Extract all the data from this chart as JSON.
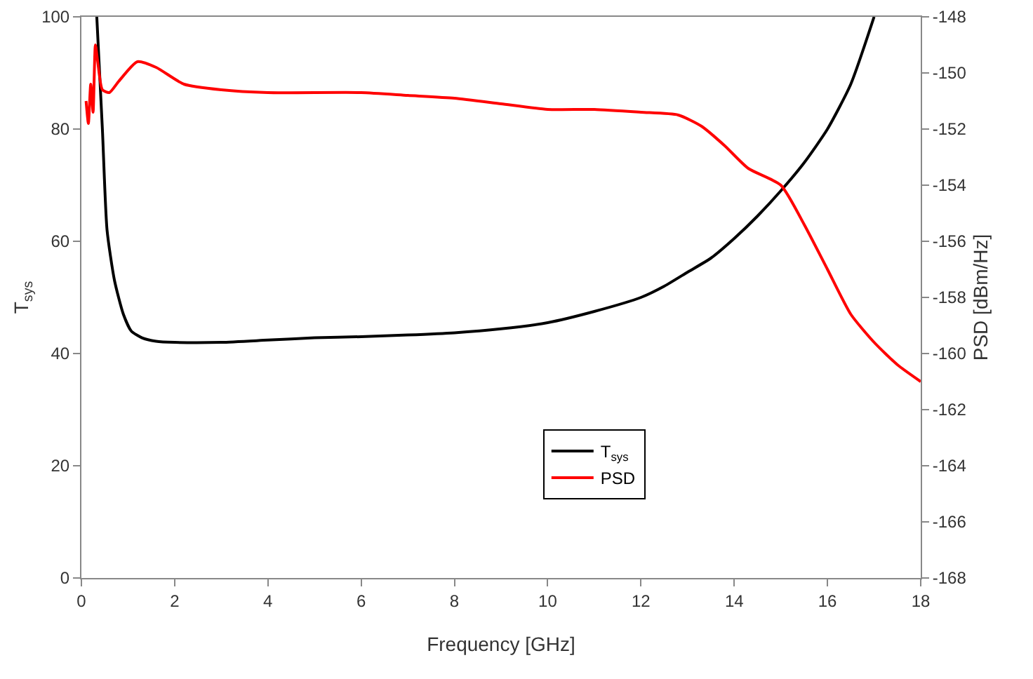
{
  "chart_data": {
    "type": "line",
    "xlabel": "Frequency [GHz]",
    "ylabel": "T$_{sys}$",
    "y2label": "PSD [dBm/Hz]",
    "xlim": [
      0,
      18
    ],
    "xticks": [
      0,
      2,
      4,
      6,
      8,
      10,
      12,
      14,
      16,
      18
    ],
    "ylim": [
      0,
      100
    ],
    "yticks": [
      0,
      20,
      40,
      60,
      80,
      100
    ],
    "y2lim": [
      -168,
      -148
    ],
    "y2ticks": [
      -168,
      -166,
      -164,
      -162,
      -160,
      -158,
      -156,
      -154,
      -152,
      -150,
      -148
    ],
    "grid": false,
    "legend": "bottom",
    "marker": "none",
    "line_style": "solid",
    "series": [
      {
        "name": "T$_{sys}$",
        "color": "#000000",
        "x": [
          0.33,
          0.45,
          0.55,
          0.71,
          0.9,
          1.07,
          1.3,
          1.6,
          2,
          3,
          4,
          5,
          6,
          7,
          8,
          9,
          10,
          11,
          12,
          12.5,
          13,
          13.5,
          14,
          14.5,
          15,
          15.5,
          16,
          16.5,
          17
        ],
        "values": [
          100,
          80,
          62,
          53,
          47,
          44,
          42.8,
          42.2,
          42,
          42,
          42.4,
          42.8,
          43,
          43.3,
          43.7,
          44.4,
          45.5,
          47.5,
          50,
          52,
          54.5,
          57,
          60.5,
          64.5,
          69,
          74,
          80,
          88,
          100
        ]
      },
      {
        "name": "PSD",
        "color": "#ff0000",
        "axis": "y2",
        "x": [
          0.1,
          0.15,
          0.2,
          0.25,
          0.3,
          0.35,
          0.45,
          0.6,
          0.8,
          1.2,
          1.6,
          2.2,
          3,
          4,
          6,
          7,
          8,
          9,
          10,
          11,
          12,
          12.8,
          13.3,
          13.8,
          14.3,
          15,
          15.5,
          16,
          16.5,
          17,
          17.5,
          18
        ],
        "values": [
          -151,
          -151.8,
          -150.4,
          -151.4,
          -149,
          -149.6,
          -150.6,
          -150.7,
          -150.3,
          -149.6,
          -149.8,
          -150.4,
          -150.6,
          -150.7,
          -150.7,
          -150.8,
          -150.9,
          -151.1,
          -151.3,
          -151.3,
          -151.4,
          -151.5,
          -151.9,
          -152.6,
          -153.4,
          -154,
          -155.4,
          -157,
          -158.6,
          -159.6,
          -160.4,
          -161
        ]
      }
    ]
  }
}
